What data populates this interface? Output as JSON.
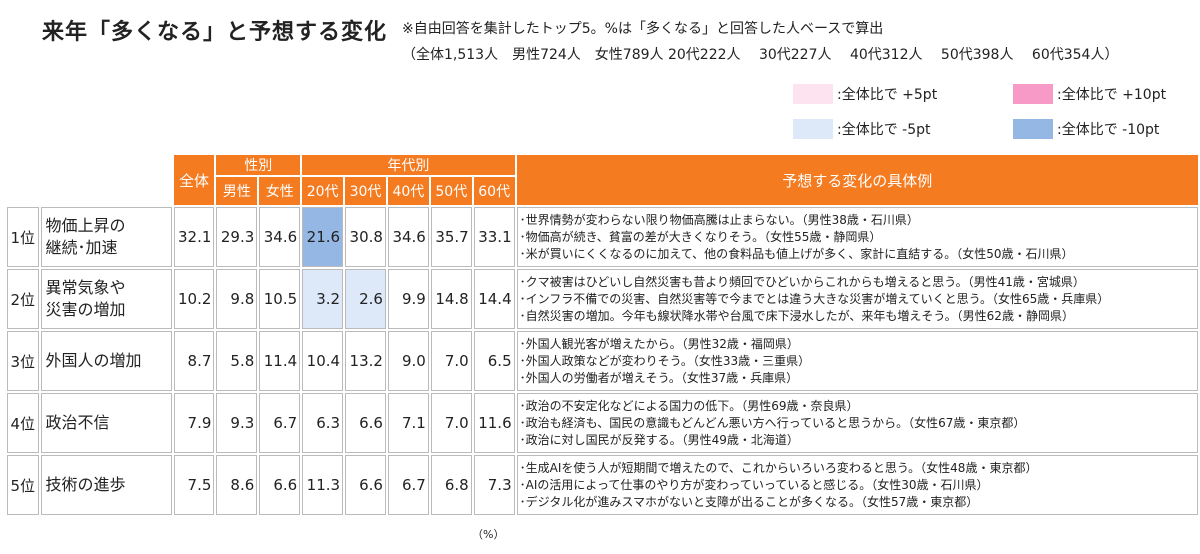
{
  "title": "来年「多くなる」と予想する変化",
  "notes": {
    "line1": "※自由回答を集計したトップ5。%は「多くなる」と回答した人ベースで算出",
    "line2": "（全体1,513人　男性724人　女性789人 20代222人　 30代227人　 40代312人　 50代398人　 60代354人）"
  },
  "legend": [
    {
      "label": ":全体比で +5pt",
      "color": "#fde3ef"
    },
    {
      "label": ":全体比で +10pt",
      "color": "#f79ac8"
    },
    {
      "label": ":全体比で -5pt",
      "color": "#dde9f8"
    },
    {
      "label": ":全体比で -10pt",
      "color": "#94b7e3"
    }
  ],
  "headers": {
    "total": "全体",
    "gender": "性別",
    "male": "男性",
    "female": "女性",
    "age": "年代別",
    "a20": "20代",
    "a30": "30代",
    "a40": "40代",
    "a50": "50代",
    "a60": "60代",
    "examples": "予想する変化の具体例"
  },
  "rows": [
    {
      "rank": "1位",
      "item_l1": "物価上昇の",
      "item_l2": "継続･加速",
      "values": [
        "32.1",
        "29.3",
        "34.6",
        "21.6",
        "30.8",
        "34.6",
        "35.7",
        "33.1"
      ],
      "examples": [
        "･世界情勢が変わらない限り物価高騰は止まらない。（男性38歳・石川県）",
        "･物価高が続き、貧富の差が大きくなりそう。（女性55歳・静岡県）",
        "･米が買いにくくなるのに加えて、他の食料品も値上げが多く、家計に直結する。（女性50歳・石川県）"
      ]
    },
    {
      "rank": "2位",
      "item_l1": "異常気象や",
      "item_l2": "災害の増加",
      "values": [
        "10.2",
        "9.8",
        "10.5",
        "3.2",
        "2.6",
        "9.9",
        "14.8",
        "14.4"
      ],
      "examples": [
        "･クマ被害はひどいし自然災害も昔より頻回でひどいからこれからも増えると思う。（男性41歳・宮城県）",
        "･インフラ不備での災害、自然災害等で今までとは違う大きな災害が増えていくと思う。（女性65歳・兵庫県）",
        "･自然災害の増加。今年も線状降水帯や台風で床下浸水したが、来年も増えそう。（男性62歳・静岡県）"
      ]
    },
    {
      "rank": "3位",
      "item_l1": "外国人の増加",
      "item_l2": "",
      "values": [
        "8.7",
        "5.8",
        "11.4",
        "10.4",
        "13.2",
        "9.0",
        "7.0",
        "6.5"
      ],
      "examples": [
        "･外国人観光客が増えたから。（男性32歳・福岡県）",
        "･外国人政策などが変わりそう。（女性33歳・三重県）",
        "･外国人の労働者が増えそう。（女性37歳・兵庫県）"
      ]
    },
    {
      "rank": "4位",
      "item_l1": "政治不信",
      "item_l2": "",
      "values": [
        "7.9",
        "9.3",
        "6.7",
        "6.3",
        "6.6",
        "7.1",
        "7.0",
        "11.6"
      ],
      "examples": [
        "･政治の不安定化などによる国力の低下。（男性69歳・奈良県）",
        "･政治も経済も、国民の意識もどんどん悪い方へ行っていると思うから。（女性67歳・東京都）",
        "･政治に対し国民が反発する。（男性49歳・北海道）"
      ]
    },
    {
      "rank": "5位",
      "item_l1": "技術の進歩",
      "item_l2": "",
      "values": [
        "7.5",
        "8.6",
        "6.6",
        "11.3",
        "6.6",
        "6.7",
        "6.8",
        "7.3"
      ],
      "examples": [
        "･生成AIを使う人が短期間で増えたので、これからいろいろ変わると思う。（女性48歳・東京都）",
        "･AIの活用によって仕事のやり方が変わっていっていると感じる。（女性30歳・石川県）",
        "･デジタル化が進みスマホがないと支障が出ることが多くなる。（女性57歳・東京都）"
      ]
    }
  ],
  "highlights": {
    "r0_a20": "#94b7e3",
    "r1_a20": "#dde9f8",
    "r1_a30": "#dde9f8"
  },
  "unit": "（%）"
}
